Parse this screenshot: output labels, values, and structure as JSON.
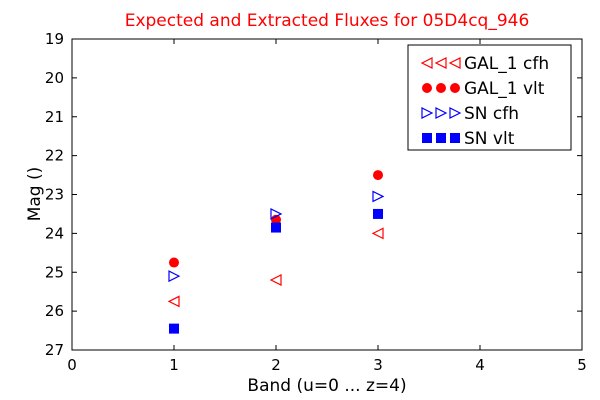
{
  "chart_data": {
    "type": "scatter",
    "title": "Expected and Extracted Fluxes for 05D4cq_946",
    "xlabel": "Band (u=0 ... z=4)",
    "ylabel": "Mag ()",
    "xlim": [
      0,
      5
    ],
    "ylim": [
      19,
      27
    ],
    "y_inverted": true,
    "x_ticks": [
      "0",
      "1",
      "2",
      "3",
      "4",
      "5"
    ],
    "y_ticks": [
      "19",
      "20",
      "21",
      "22",
      "23",
      "24",
      "25",
      "26",
      "27"
    ],
    "grid": false,
    "legend_position": "top-right",
    "series": [
      {
        "name": "GAL_1 cfh",
        "marker": "triangle-left",
        "filled": false,
        "color": "#ff0000",
        "x": [
          1,
          2,
          3
        ],
        "y": [
          25.75,
          25.2,
          24.0
        ]
      },
      {
        "name": "GAL_1 vlt",
        "marker": "circle",
        "filled": true,
        "color": "#ff0000",
        "x": [
          1,
          2,
          3
        ],
        "y": [
          24.75,
          23.65,
          22.5
        ]
      },
      {
        "name": "SN cfh",
        "marker": "triangle-right",
        "filled": false,
        "color": "#0000ff",
        "x": [
          1,
          2,
          3
        ],
        "y": [
          25.1,
          23.5,
          23.05
        ]
      },
      {
        "name": "SN vlt",
        "marker": "square",
        "filled": true,
        "color": "#0000ff",
        "x": [
          1,
          2,
          3
        ],
        "y": [
          26.45,
          23.85,
          23.5
        ]
      }
    ]
  }
}
